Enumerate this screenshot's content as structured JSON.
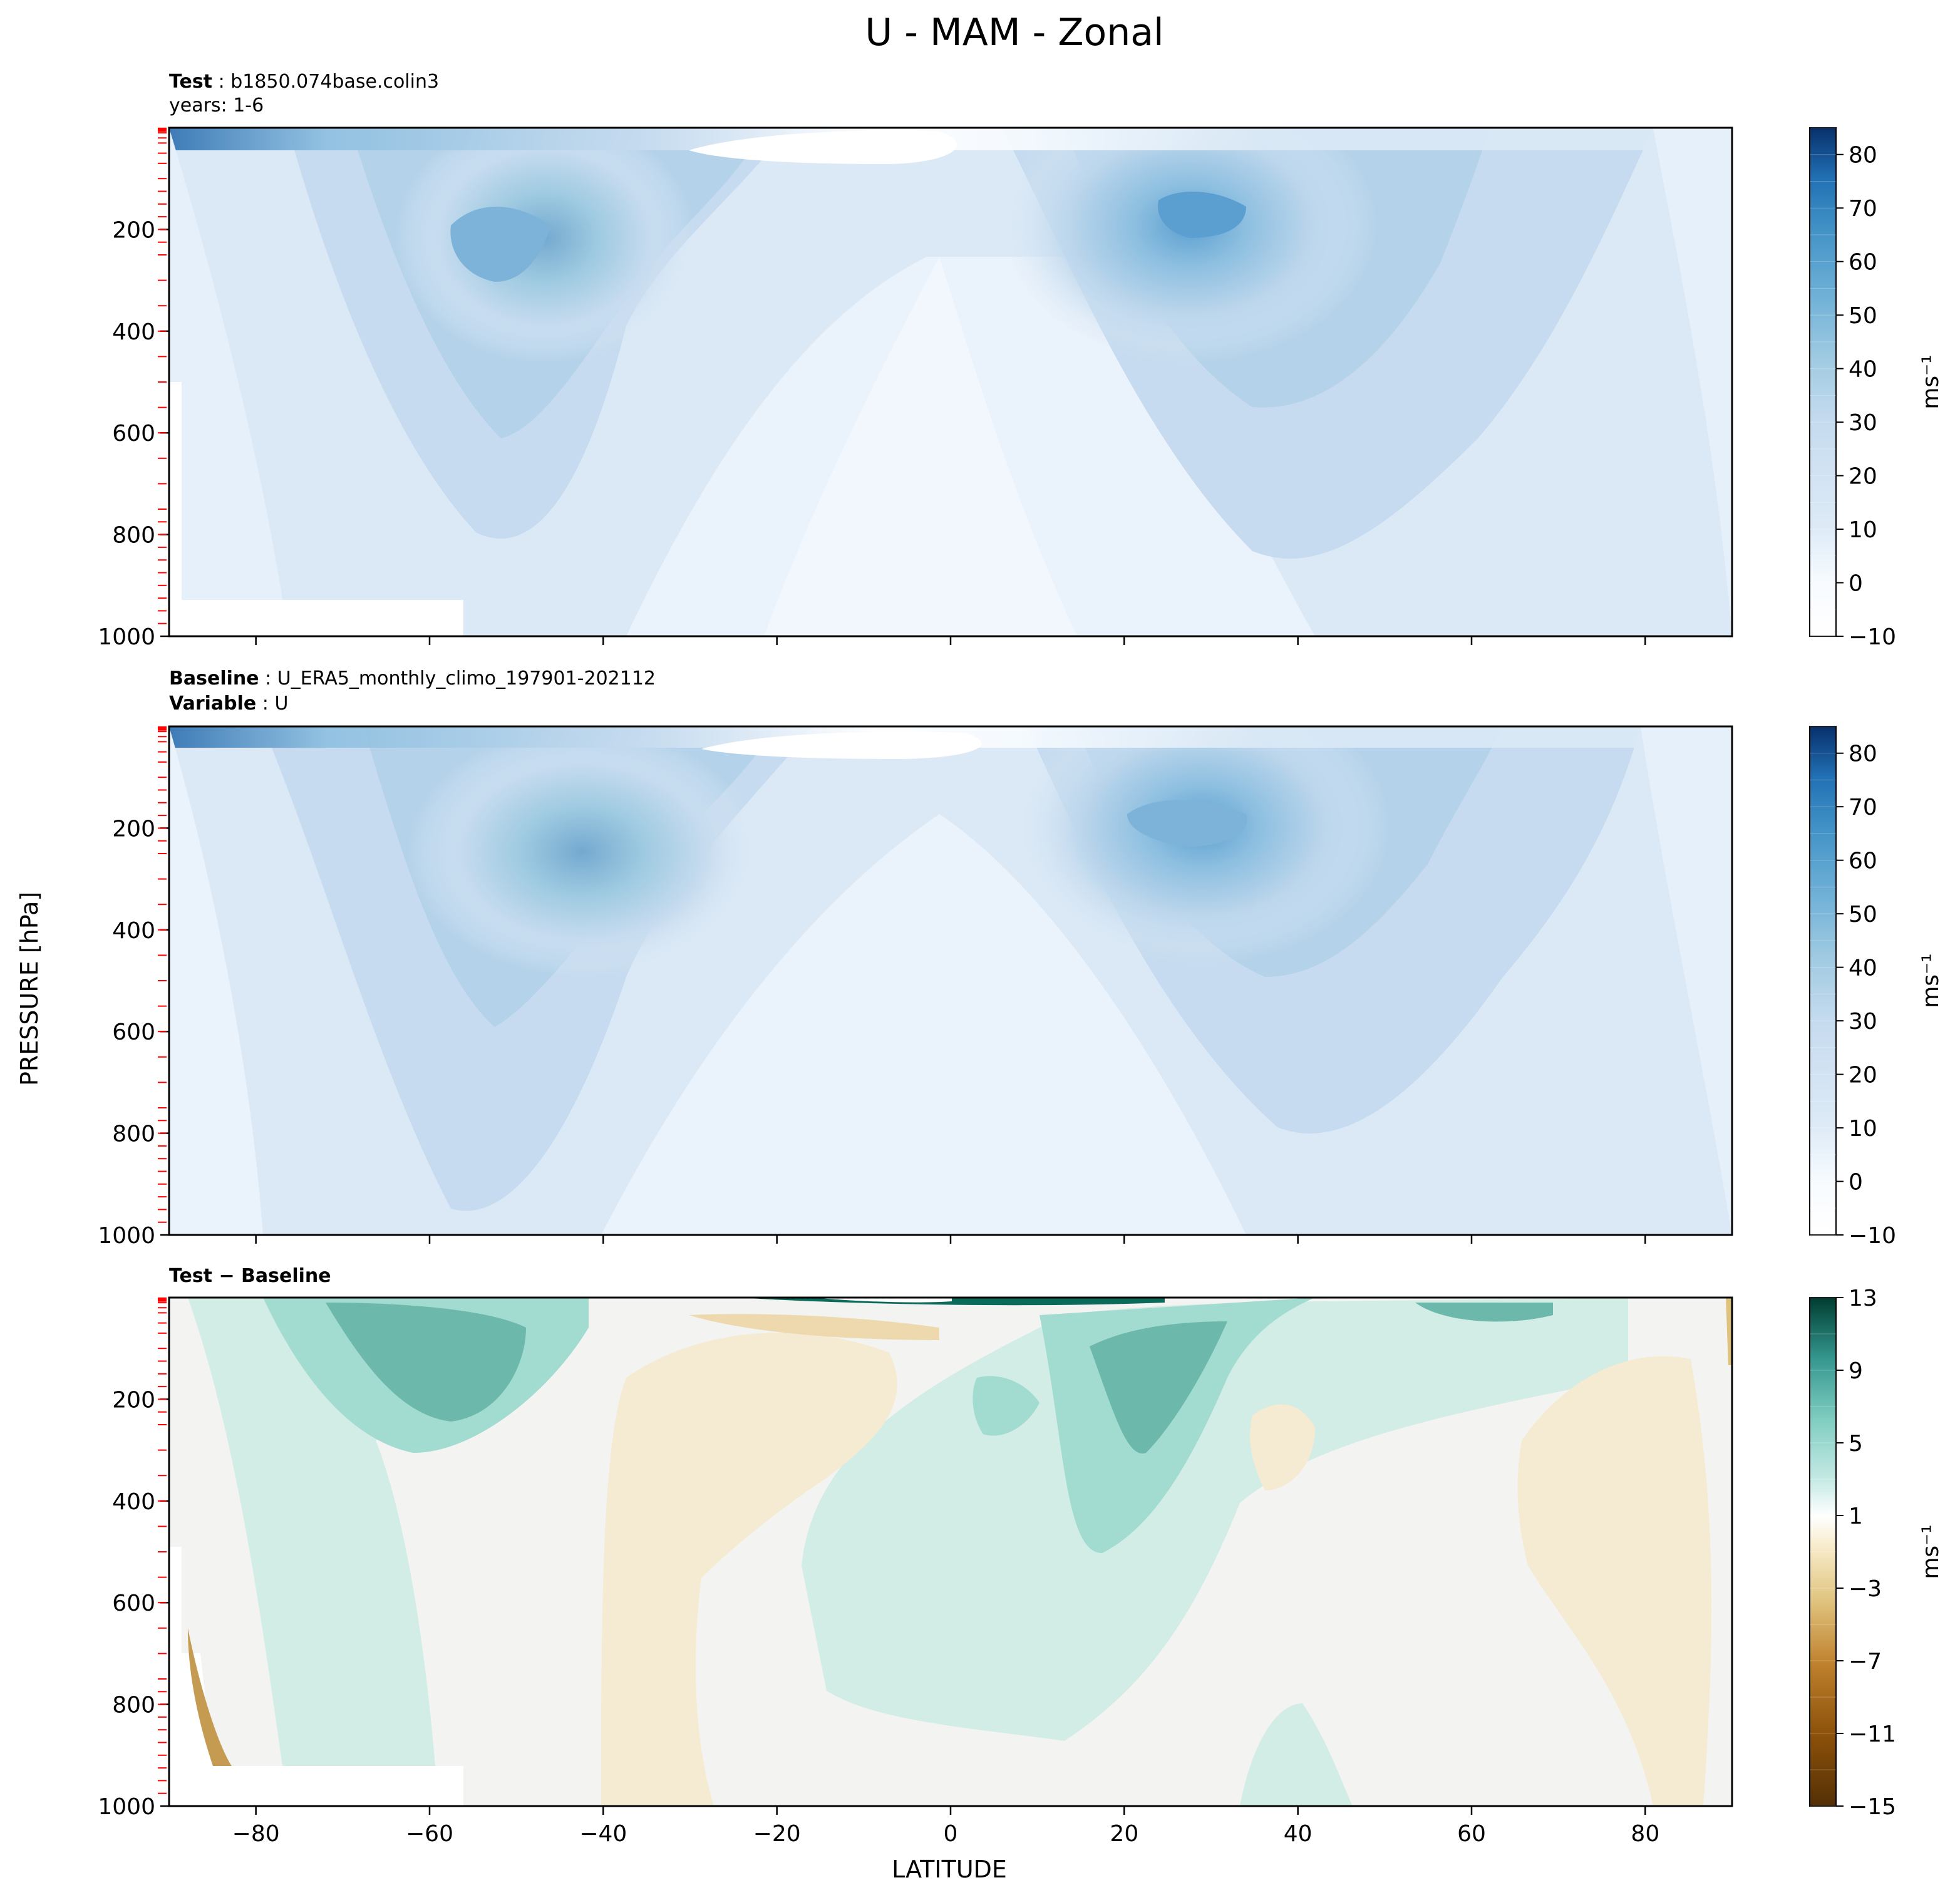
{
  "figure": {
    "title": "U - MAM - Zonal",
    "xlabel": "LATITUDE",
    "ylabel": "PRESSURE [hPa]"
  },
  "panels": [
    {
      "id": "test",
      "header_line1_bold": "Test",
      "header_line1_text": "b1850.074base.colin3",
      "header_line2": "years: 1-6",
      "colorbar_label": "ms⁻¹",
      "colorbar_ticks": [
        "80",
        "70",
        "60",
        "50",
        "40",
        "30",
        "20",
        "10",
        "0",
        "−10"
      ]
    },
    {
      "id": "baseline",
      "header_line1_bold": "Baseline",
      "header_line1_text": "U_ERA5_monthly_climo_197901-202112",
      "header_line2_bold": "Variable",
      "header_line2_text": "U",
      "colorbar_label": "ms⁻¹",
      "colorbar_ticks": [
        "80",
        "70",
        "60",
        "50",
        "40",
        "30",
        "20",
        "10",
        "0",
        "−10"
      ]
    },
    {
      "id": "difference",
      "header_line1_bold": "Test − Baseline",
      "colorbar_label": "ms⁻¹",
      "colorbar_ticks": [
        "13",
        "9",
        "5",
        "1",
        "−3",
        "−7",
        "−11",
        "−15"
      ]
    }
  ],
  "chart_data": [
    {
      "type": "heatmap",
      "title": "Test",
      "xlim": [
        -90,
        90
      ],
      "ylim": [
        1000,
        0
      ],
      "x_ticks": [
        -80,
        -60,
        -40,
        -20,
        0,
        20,
        40,
        60,
        80
      ],
      "y_ticks": [
        200,
        400,
        600,
        800,
        1000
      ],
      "colorbar": {
        "min": -10,
        "max": 85,
        "step": 5,
        "colormap": "Blues",
        "tick_values": [
          80,
          70,
          60,
          50,
          40,
          30,
          20,
          10,
          0,
          -10
        ]
      },
      "features": [
        {
          "kind": "jet_max",
          "lat": -52,
          "pressure": 220,
          "value": 40
        },
        {
          "kind": "jet_max",
          "lat": 28,
          "pressure": 180,
          "value": 45
        },
        {
          "kind": "minimum",
          "lat": -10,
          "pressure": 20,
          "value": -10
        }
      ]
    },
    {
      "type": "heatmap",
      "title": "Baseline",
      "xlim": [
        -90,
        90
      ],
      "ylim": [
        1000,
        0
      ],
      "x_ticks": [
        -80,
        -60,
        -40,
        -20,
        0,
        20,
        40,
        60,
        80
      ],
      "y_ticks": [
        200,
        400,
        600,
        800,
        1000
      ],
      "colorbar": {
        "min": -10,
        "max": 85,
        "step": 5,
        "colormap": "Blues",
        "tick_values": [
          80,
          70,
          60,
          50,
          40,
          30,
          20,
          10,
          0,
          -10
        ]
      },
      "features": [
        {
          "kind": "jet_max",
          "lat": -45,
          "pressure": 230,
          "value": 35
        },
        {
          "kind": "jet_max",
          "lat": 30,
          "pressure": 190,
          "value": 40
        },
        {
          "kind": "minimum",
          "lat": -10,
          "pressure": 30,
          "value": -10
        }
      ]
    },
    {
      "type": "heatmap",
      "title": "Test − Baseline",
      "xlim": [
        -90,
        90
      ],
      "ylim": [
        1000,
        0
      ],
      "x_ticks": [
        -80,
        -60,
        -40,
        -20,
        0,
        20,
        40,
        60,
        80
      ],
      "y_ticks": [
        200,
        400,
        600,
        800,
        1000
      ],
      "colorbar": {
        "min": -15,
        "max": 13,
        "step": 2,
        "colormap": "BrBG",
        "tick_values": [
          13,
          9,
          5,
          1,
          -3,
          -7,
          -11,
          -15
        ]
      },
      "features": [
        {
          "kind": "positive",
          "lat": -55,
          "pressure": 150,
          "value": 7
        },
        {
          "kind": "positive",
          "lat": 25,
          "pressure": 200,
          "value": 7
        },
        {
          "kind": "positive",
          "lat": 10,
          "pressure": 5,
          "value": 13
        },
        {
          "kind": "negative",
          "lat": -30,
          "pressure": 500,
          "value": -2
        },
        {
          "kind": "negative",
          "lat": 75,
          "pressure": 500,
          "value": -2
        }
      ]
    }
  ]
}
